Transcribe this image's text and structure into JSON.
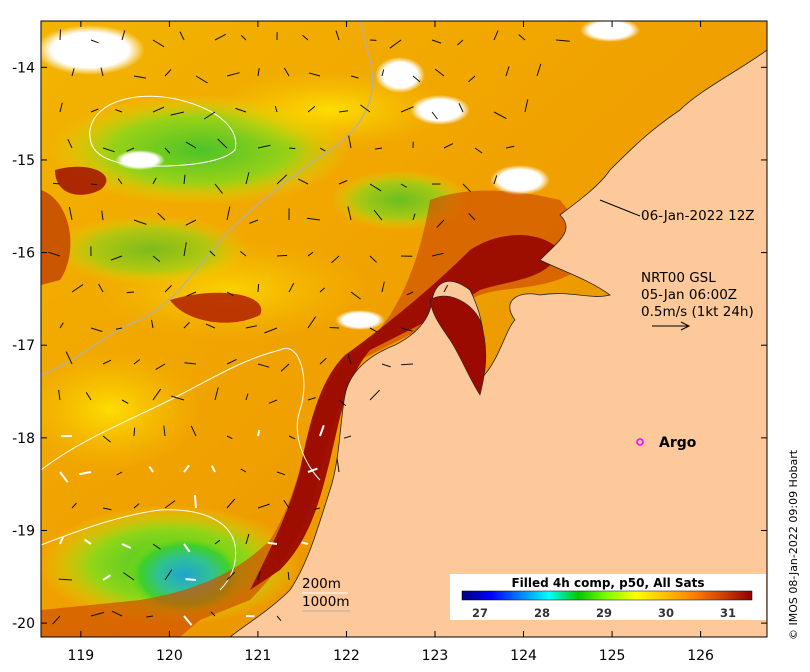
{
  "map": {
    "x_ticks": [
      "119",
      "120",
      "121",
      "122",
      "123",
      "124",
      "125",
      "126"
    ],
    "y_ticks": [
      "-14",
      "-15",
      "-16",
      "-17",
      "-18",
      "-19",
      "-20"
    ],
    "lon_range": [
      118.55,
      126.75
    ],
    "lat_range": [
      -20.15,
      -13.5
    ]
  },
  "annotations": {
    "date_label": "06-Jan-2022 12Z",
    "current_source": "NRT00 GSL",
    "current_time": "05-Jan 06:00Z",
    "current_scale": "0.5m/s (1kt 24h)",
    "argo_label": "Argo",
    "contour_200": "200m",
    "contour_1000": "1000m"
  },
  "colorbar": {
    "title": "Filled 4h comp, p50, All Sats",
    "ticks": [
      "27",
      "28",
      "29",
      "30",
      "31"
    ],
    "colors": [
      "#00007f",
      "#0000ff",
      "#007fff",
      "#00ffff",
      "#00c800",
      "#7fff00",
      "#ffff00",
      "#ffbf00",
      "#ff7f00",
      "#d04000",
      "#900000"
    ]
  },
  "credit": "© IMOS 08-Jan-2022 09:09 Hobart",
  "palette": {
    "land": "#fdc99a",
    "cloud": "#ffffff",
    "sst_warm": "#f2a000",
    "sst_hot": "#9b0a00",
    "sst_cool": "#26c41a"
  },
  "icons": [
    "argo-float-icon",
    "current-arrow-icon"
  ]
}
